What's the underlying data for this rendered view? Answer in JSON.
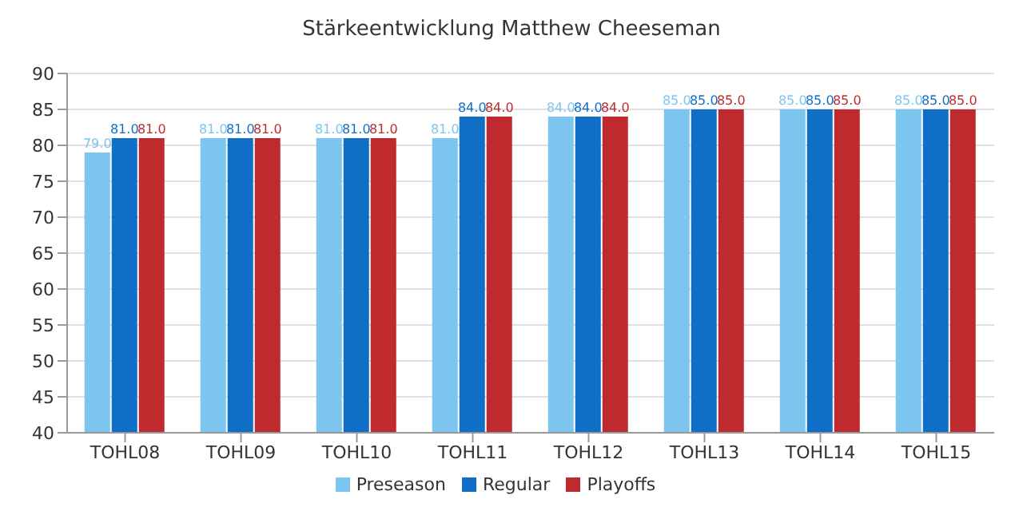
{
  "chart_data": {
    "type": "bar",
    "title": "Stärkeentwicklung Matthew Cheeseman",
    "categories": [
      "TOHL08",
      "TOHL09",
      "TOHL10",
      "TOHL11",
      "TOHL12",
      "TOHL13",
      "TOHL14",
      "TOHL15"
    ],
    "series": [
      {
        "name": "Preseason",
        "color": "#7cc5ef",
        "values": [
          79,
          81,
          81,
          81,
          84,
          85,
          85,
          85
        ],
        "value_labels": [
          "79.0",
          "81.0",
          "81.0",
          "81.0",
          "84.0",
          "85.0",
          "85.0",
          "85.0"
        ]
      },
      {
        "name": "Regular",
        "color": "#0f6fc6",
        "values": [
          81,
          81,
          81,
          84,
          84,
          85,
          85,
          85
        ],
        "value_labels": [
          "81.0",
          "81.0",
          "81.0",
          "84.0",
          "84.0",
          "85.0",
          "85.0",
          "85.0"
        ]
      },
      {
        "name": "Playoffs",
        "color": "#be2a2e",
        "values": [
          81,
          81,
          81,
          84,
          84,
          85,
          85,
          85
        ],
        "value_labels": [
          "81.0",
          "81.0",
          "81.0",
          "84.0",
          "84.0",
          "85.0",
          "85.0",
          "85.0"
        ]
      }
    ],
    "ylim": [
      40,
      90
    ],
    "yticks": [
      40,
      45,
      50,
      55,
      60,
      65,
      70,
      75,
      80,
      85,
      90
    ],
    "grid": "y",
    "legend": "bottom"
  }
}
